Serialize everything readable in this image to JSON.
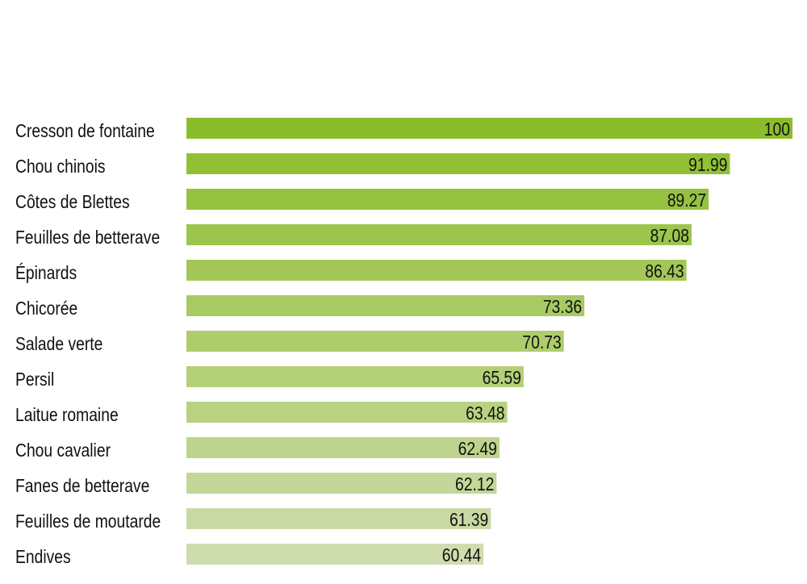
{
  "chart_data": {
    "type": "bar",
    "orientation": "horizontal",
    "title": "",
    "xlabel": "",
    "ylabel": "",
    "xlim": [
      0,
      100
    ],
    "grid": false,
    "categories": [
      "Cresson de fontaine",
      "Chou chinois",
      "Côtes de Blettes",
      "Feuilles de betterave",
      "Épinards",
      "Chicorée",
      "Salade verte",
      "Persil",
      "Laitue romaine",
      "Chou cavalier",
      "Fanes de betterave",
      "Feuilles de moutarde",
      "Endives"
    ],
    "values": [
      100,
      91.99,
      89.27,
      87.08,
      86.43,
      73.36,
      70.73,
      65.59,
      63.48,
      62.49,
      62.12,
      61.39,
      60.44
    ],
    "value_labels": [
      "100",
      "91.99",
      "89.27",
      "87.08",
      "86.43",
      "73.36",
      "70.73",
      "65.59",
      "63.48",
      "62.49",
      "62.12",
      "61.39",
      "60.44"
    ],
    "colors": {
      "start": "#8bbd2b",
      "end": "#cfdcae"
    }
  }
}
